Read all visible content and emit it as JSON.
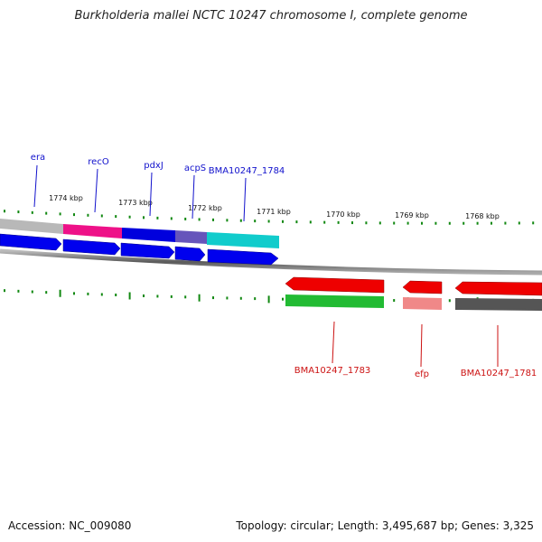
{
  "title": "Burkholderia mallei NCTC 10247 chromosome I, complete genome",
  "accession": "Accession: NC_009080",
  "topology": "Topology: circular; Length: 3,495,687 bp; Genes: 3,325",
  "colors": {
    "tick": "#118811",
    "forward_label": "#1111cc",
    "reverse_label": "#cc1111",
    "forward_gene": "#0000ee",
    "reverse_gene": "#ee0000",
    "backbone": "#777777"
  },
  "kbp_labels": [
    "1774 kbp",
    "1773 kbp",
    "1772 kbp",
    "1771 kbp",
    "1770 kbp",
    "1769 kbp",
    "1768 kbp"
  ],
  "forward_genes": [
    {
      "name": "era",
      "cog_color": "#b8b8b8"
    },
    {
      "name": "recO",
      "cog_color": "#ee1188"
    },
    {
      "name": "pdxJ",
      "cog_color": "#0000dd"
    },
    {
      "name": "acpS",
      "cog_color": "#6655bb"
    },
    {
      "name": "BMA10247_1784",
      "cog_color": "#11cccc"
    }
  ],
  "reverse_genes": [
    {
      "name": "BMA10247_1783",
      "cog_color": "#22bb33"
    },
    {
      "name": "efp",
      "cog_color": "#f08888"
    },
    {
      "name": "BMA10247_1781",
      "cog_color": "#555555"
    }
  ]
}
